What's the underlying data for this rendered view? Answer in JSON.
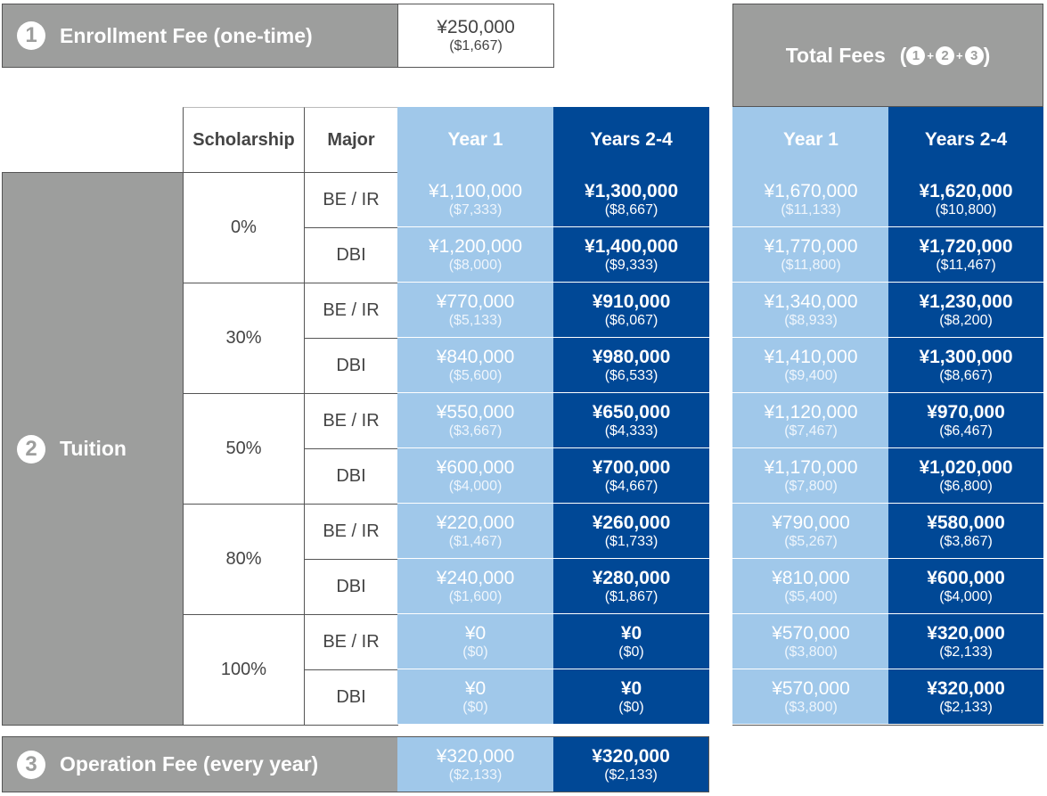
{
  "enrollment": {
    "num": "1",
    "label": "Enrollment Fee (one-time)",
    "yen": "¥250,000",
    "usd": "($1,667)"
  },
  "total": {
    "label": "Total Fees",
    "open": "(",
    "close": ")",
    "n1": "1",
    "n2": "2",
    "n3": "3",
    "plus": "+"
  },
  "headers": {
    "scholarship": "Scholarship",
    "major": "Major",
    "year1": "Year 1",
    "years24": "Years 2-4",
    "total_year1": "Year 1",
    "total_years24": "Years 2-4"
  },
  "tuition": {
    "num": "2",
    "label": "Tuition"
  },
  "groups": [
    {
      "scholarship": "0%",
      "rows": [
        {
          "major": "BE / IR",
          "y1": "¥1,100,000",
          "y1u": "($7,333)",
          "y2": "¥1,300,000",
          "y2u": "($8,667)",
          "t1": "¥1,670,000",
          "t1u": "($11,133)",
          "t2": "¥1,620,000",
          "t2u": "($10,800)"
        },
        {
          "major": "DBI",
          "y1": "¥1,200,000",
          "y1u": "($8,000)",
          "y2": "¥1,400,000",
          "y2u": "($9,333)",
          "t1": "¥1,770,000",
          "t1u": "($11,800)",
          "t2": "¥1,720,000",
          "t2u": "($11,467)"
        }
      ]
    },
    {
      "scholarship": "30%",
      "rows": [
        {
          "major": "BE / IR",
          "y1": "¥770,000",
          "y1u": "($5,133)",
          "y2": "¥910,000",
          "y2u": "($6,067)",
          "t1": "¥1,340,000",
          "t1u": "($8,933)",
          "t2": "¥1,230,000",
          "t2u": "($8,200)"
        },
        {
          "major": "DBI",
          "y1": "¥840,000",
          "y1u": "($5,600)",
          "y2": "¥980,000",
          "y2u": "($6,533)",
          "t1": "¥1,410,000",
          "t1u": "($9,400)",
          "t2": "¥1,300,000",
          "t2u": "($8,667)"
        }
      ]
    },
    {
      "scholarship": "50%",
      "rows": [
        {
          "major": "BE / IR",
          "y1": "¥550,000",
          "y1u": "($3,667)",
          "y2": "¥650,000",
          "y2u": "($4,333)",
          "t1": "¥1,120,000",
          "t1u": "($7,467)",
          "t2": "¥970,000",
          "t2u": "($6,467)"
        },
        {
          "major": "DBI",
          "y1": "¥600,000",
          "y1u": "($4,000)",
          "y2": "¥700,000",
          "y2u": "($4,667)",
          "t1": "¥1,170,000",
          "t1u": "($7,800)",
          "t2": "¥1,020,000",
          "t2u": "($6,800)"
        }
      ]
    },
    {
      "scholarship": "80%",
      "rows": [
        {
          "major": "BE / IR",
          "y1": "¥220,000",
          "y1u": "($1,467)",
          "y2": "¥260,000",
          "y2u": "($1,733)",
          "t1": "¥790,000",
          "t1u": "($5,267)",
          "t2": "¥580,000",
          "t2u": "($3,867)"
        },
        {
          "major": "DBI",
          "y1": "¥240,000",
          "y1u": "($1,600)",
          "y2": "¥280,000",
          "y2u": "($1,867)",
          "t1": "¥810,000",
          "t1u": "($5,400)",
          "t2": "¥600,000",
          "t2u": "($4,000)"
        }
      ]
    },
    {
      "scholarship": "100%",
      "rows": [
        {
          "major": "BE / IR",
          "y1": "¥0",
          "y1u": "($0)",
          "y2": "¥0",
          "y2u": "($0)",
          "t1": "¥570,000",
          "t1u": "($3,800)",
          "t2": "¥320,000",
          "t2u": "($2,133)"
        },
        {
          "major": "DBI",
          "y1": "¥0",
          "y1u": "($0)",
          "y2": "¥0",
          "y2u": "($0)",
          "t1": "¥570,000",
          "t1u": "($3,800)",
          "t2": "¥320,000",
          "t2u": "($2,133)"
        }
      ]
    }
  ],
  "operation": {
    "num": "3",
    "label": "Operation Fee (every year)",
    "y1": "¥320,000",
    "y1u": "($2,133)",
    "y2": "¥320,000",
    "y2u": "($2,133)"
  },
  "colors": {
    "gray": "#9d9e9d",
    "light_blue": "#a0c8ea",
    "dark_blue": "#004896"
  }
}
